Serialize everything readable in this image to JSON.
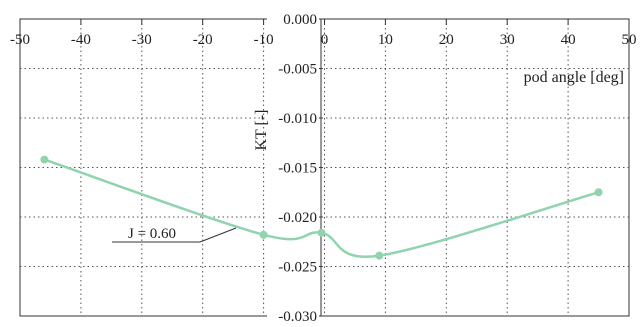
{
  "chart_data": {
    "type": "line",
    "xlabel": "pod angle [deg]",
    "ylabel": "KT [-]",
    "xlim": [
      -50,
      50
    ],
    "ylim": [
      -0.03,
      0.0
    ],
    "x_ticks": [
      -50,
      -40,
      -30,
      -20,
      -10,
      0,
      10,
      20,
      30,
      40,
      50
    ],
    "x_tick_labels": [
      "-50",
      "-40",
      "-30",
      "-20",
      "-10",
      "0",
      "10",
      "20",
      "30",
      "40",
      "50"
    ],
    "y_ticks": [
      0.0,
      -0.005,
      -0.01,
      -0.015,
      -0.02,
      -0.025,
      -0.03
    ],
    "y_tick_labels": [
      "0.000",
      "-0.005",
      "-0.010",
      "-0.015",
      "-0.020",
      "-0.025",
      "-0.030"
    ],
    "grid": true,
    "series": [
      {
        "name": "J = 0.60",
        "color": "#8fd4ad",
        "x": [
          -46,
          -10,
          -0.5,
          9,
          45
        ],
        "y": [
          -0.0142,
          -0.0218,
          -0.0216,
          -0.0239,
          -0.0175
        ]
      }
    ],
    "annotations": [
      {
        "text": "J = 0.60"
      }
    ]
  }
}
